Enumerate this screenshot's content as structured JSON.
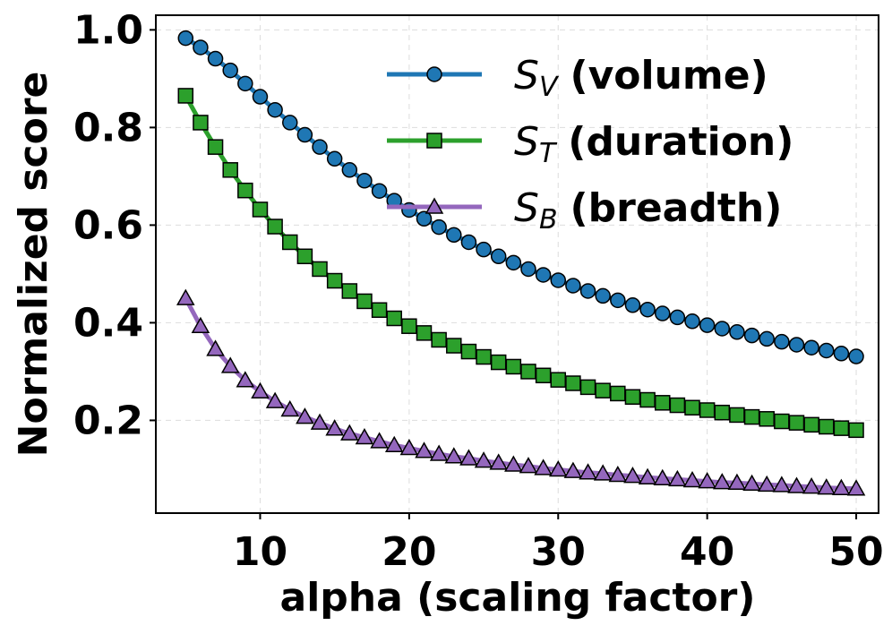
{
  "chart_data": {
    "type": "line",
    "xlabel": "alpha (scaling factor)",
    "ylabel": "Normalized score",
    "xlim": [
      3,
      51.5
    ],
    "ylim": [
      0.01,
      1.03
    ],
    "xticks": [
      10,
      20,
      30,
      40,
      50
    ],
    "yticks": [
      0.2,
      0.4,
      0.6,
      0.8,
      1.0
    ],
    "xtick_labels": [
      "10",
      "20",
      "30",
      "40",
      "50"
    ],
    "ytick_labels": [
      "0.2",
      "0.4",
      "0.6",
      "0.8",
      "1.0"
    ],
    "grid": true,
    "legend_position": "top-right",
    "x": [
      5,
      6,
      7,
      8,
      9,
      10,
      11,
      12,
      13,
      14,
      15,
      16,
      17,
      18,
      19,
      20,
      21,
      22,
      23,
      24,
      25,
      26,
      27,
      28,
      29,
      30,
      31,
      32,
      33,
      34,
      35,
      36,
      37,
      38,
      39,
      40,
      41,
      42,
      43,
      44,
      45,
      46,
      47,
      48,
      49,
      50
    ],
    "series": [
      {
        "name": "S_V (volume)",
        "symbol": "S",
        "subscript": "V",
        "label": "(volume)",
        "color": "#1f77b4",
        "marker": "circle",
        "values": [
          0.983,
          0.964,
          0.941,
          0.917,
          0.89,
          0.863,
          0.836,
          0.81,
          0.785,
          0.76,
          0.736,
          0.713,
          0.691,
          0.67,
          0.65,
          0.631,
          0.613,
          0.596,
          0.58,
          0.565,
          0.55,
          0.536,
          0.523,
          0.51,
          0.498,
          0.487,
          0.476,
          0.465,
          0.455,
          0.446,
          0.436,
          0.427,
          0.419,
          0.411,
          0.403,
          0.395,
          0.388,
          0.381,
          0.374,
          0.367,
          0.361,
          0.355,
          0.349,
          0.343,
          0.337,
          0.331
        ]
      },
      {
        "name": "S_T (duration)",
        "symbol": "S",
        "subscript": "T",
        "label": "(duration)",
        "color": "#2ca02c",
        "marker": "square",
        "values": [
          0.865,
          0.81,
          0.76,
          0.713,
          0.671,
          0.632,
          0.597,
          0.565,
          0.536,
          0.51,
          0.486,
          0.465,
          0.444,
          0.426,
          0.409,
          0.393,
          0.379,
          0.365,
          0.353,
          0.341,
          0.33,
          0.319,
          0.31,
          0.3,
          0.292,
          0.283,
          0.276,
          0.268,
          0.261,
          0.255,
          0.248,
          0.242,
          0.236,
          0.231,
          0.226,
          0.221,
          0.216,
          0.211,
          0.207,
          0.203,
          0.198,
          0.195,
          0.191,
          0.187,
          0.184,
          0.18
        ]
      },
      {
        "name": "S_B (breadth)",
        "symbol": "S",
        "subscript": "B",
        "label": "(breadth)",
        "color": "#9467bd",
        "marker": "triangle",
        "values": [
          0.45,
          0.393,
          0.346,
          0.311,
          0.282,
          0.259,
          0.239,
          0.222,
          0.207,
          0.195,
          0.183,
          0.173,
          0.165,
          0.157,
          0.149,
          0.143,
          0.137,
          0.131,
          0.126,
          0.122,
          0.117,
          0.113,
          0.109,
          0.106,
          0.102,
          0.099,
          0.096,
          0.093,
          0.091,
          0.088,
          0.086,
          0.083,
          0.081,
          0.079,
          0.077,
          0.075,
          0.073,
          0.072,
          0.07,
          0.068,
          0.067,
          0.065,
          0.064,
          0.062,
          0.061,
          0.06
        ]
      }
    ]
  }
}
